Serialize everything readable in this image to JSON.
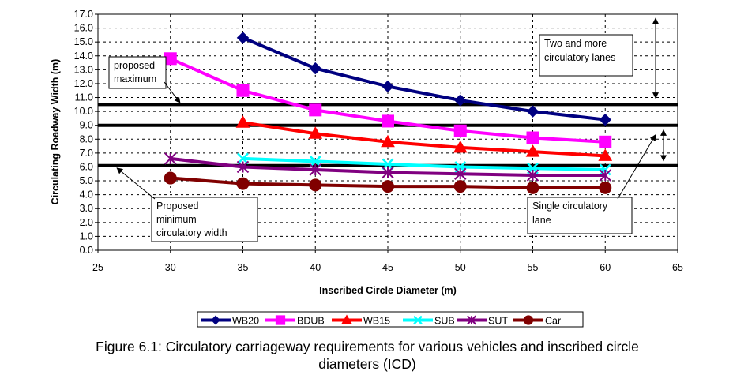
{
  "chart_data": {
    "type": "line",
    "xlabel": "Inscribed Circle Diameter (m)",
    "ylabel": "Circulating Roadway Width (m)",
    "xlim": [
      25,
      65
    ],
    "ylim": [
      0,
      17
    ],
    "x_ticks": [
      "25",
      "30",
      "35",
      "40",
      "45",
      "50",
      "55",
      "60",
      "65"
    ],
    "y_ticks": [
      "0.0",
      "1.0",
      "2.0",
      "3.0",
      "4.0",
      "5.0",
      "6.0",
      "7.0",
      "8.0",
      "9.0",
      "10.0",
      "11.0",
      "12.0",
      "13.0",
      "14.0",
      "15.0",
      "16.0",
      "17.0"
    ],
    "grid": "dashed",
    "legend_position": "bottom",
    "series": [
      {
        "name": "WB20",
        "color": "#000080",
        "marker": "diamond",
        "x": [
          35,
          40,
          45,
          50,
          55,
          60
        ],
        "values": [
          15.3,
          13.1,
          11.8,
          10.8,
          10.0,
          9.4
        ]
      },
      {
        "name": "BDUB",
        "color": "#ff00ff",
        "marker": "square",
        "x": [
          30,
          35,
          40,
          45,
          50,
          55,
          60
        ],
        "values": [
          13.8,
          11.5,
          10.1,
          9.3,
          8.6,
          8.1,
          7.8
        ]
      },
      {
        "name": "WB15",
        "color": "#ff0000",
        "marker": "triangle",
        "x": [
          35,
          40,
          45,
          50,
          55,
          60
        ],
        "values": [
          9.2,
          8.4,
          7.8,
          7.4,
          7.1,
          6.8
        ]
      },
      {
        "name": "SUB",
        "color": "#00ffff",
        "marker": "x",
        "x": [
          35,
          40,
          45,
          50,
          55,
          60
        ],
        "values": [
          6.6,
          6.4,
          6.2,
          6.0,
          5.9,
          5.8
        ]
      },
      {
        "name": "SUT",
        "color": "#800080",
        "marker": "star",
        "x": [
          30,
          35,
          40,
          45,
          50,
          55,
          60
        ],
        "values": [
          6.6,
          6.0,
          5.8,
          5.6,
          5.5,
          5.4,
          5.4
        ]
      },
      {
        "name": "Car",
        "color": "#800000",
        "marker": "circle",
        "x": [
          30,
          35,
          40,
          45,
          50,
          55,
          60
        ],
        "values": [
          5.2,
          4.8,
          4.7,
          4.6,
          4.6,
          4.5,
          4.5
        ]
      }
    ],
    "reference_lines": [
      {
        "y": 10.5,
        "color": "#000000"
      },
      {
        "y": 9.0,
        "color": "#000000"
      },
      {
        "y": 6.1,
        "color": "#000000"
      }
    ],
    "annotations": [
      {
        "id": "proposed-maximum",
        "lines": [
          "proposed",
          "maximum"
        ]
      },
      {
        "id": "two-more-lanes",
        "lines": [
          "Two and more",
          "circulatory lanes"
        ]
      },
      {
        "id": "proposed-minimum",
        "lines": [
          "Proposed",
          "minimum",
          "circulatory width"
        ]
      },
      {
        "id": "single-lane",
        "lines": [
          "Single circulatory",
          "lane"
        ]
      }
    ]
  },
  "caption": {
    "line1": "Figure 6.1: Circulatory carriageway requirements for various vehicles and inscribed circle",
    "line2": "diameters (ICD)"
  }
}
